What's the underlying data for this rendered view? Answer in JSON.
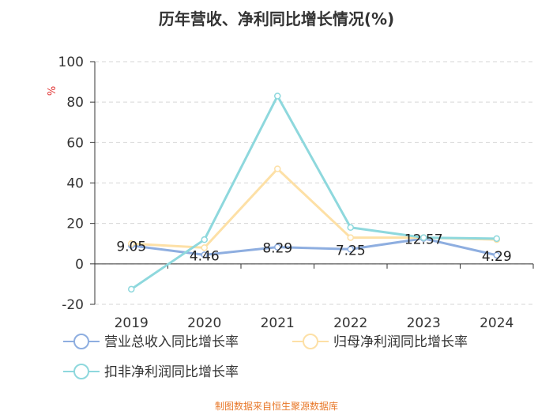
{
  "chart_data": {
    "type": "line",
    "title": "历年营收、净利同比增长情况(%)",
    "ylabel": "%",
    "xlabel": "",
    "categories": [
      "2019",
      "2020",
      "2021",
      "2022",
      "2023",
      "2024"
    ],
    "ylim": [
      -20,
      100
    ],
    "yticks": [
      -20,
      0,
      20,
      40,
      60,
      80,
      100
    ],
    "grid": "horizontal dashed",
    "legend_position": "bottom",
    "series": [
      {
        "name": "营业总收入同比增长率",
        "color": "#8eaee0",
        "values": [
          9.05,
          4.46,
          8.29,
          7.25,
          12.57,
          4.29
        ],
        "data_labels": [
          "9.05",
          "4.46",
          "8.29",
          "7.25",
          "12.57",
          "4.29"
        ]
      },
      {
        "name": "归母净利润同比增长率",
        "color": "#fde0a6",
        "values": [
          10,
          8,
          47,
          13,
          13,
          12
        ]
      },
      {
        "name": "扣非净利润同比增长率",
        "color": "#8ed8dd",
        "values": [
          -12.5,
          12,
          83,
          18,
          13,
          12.5
        ]
      }
    ]
  },
  "source_note": "制图数据来自恒生聚源数据库"
}
